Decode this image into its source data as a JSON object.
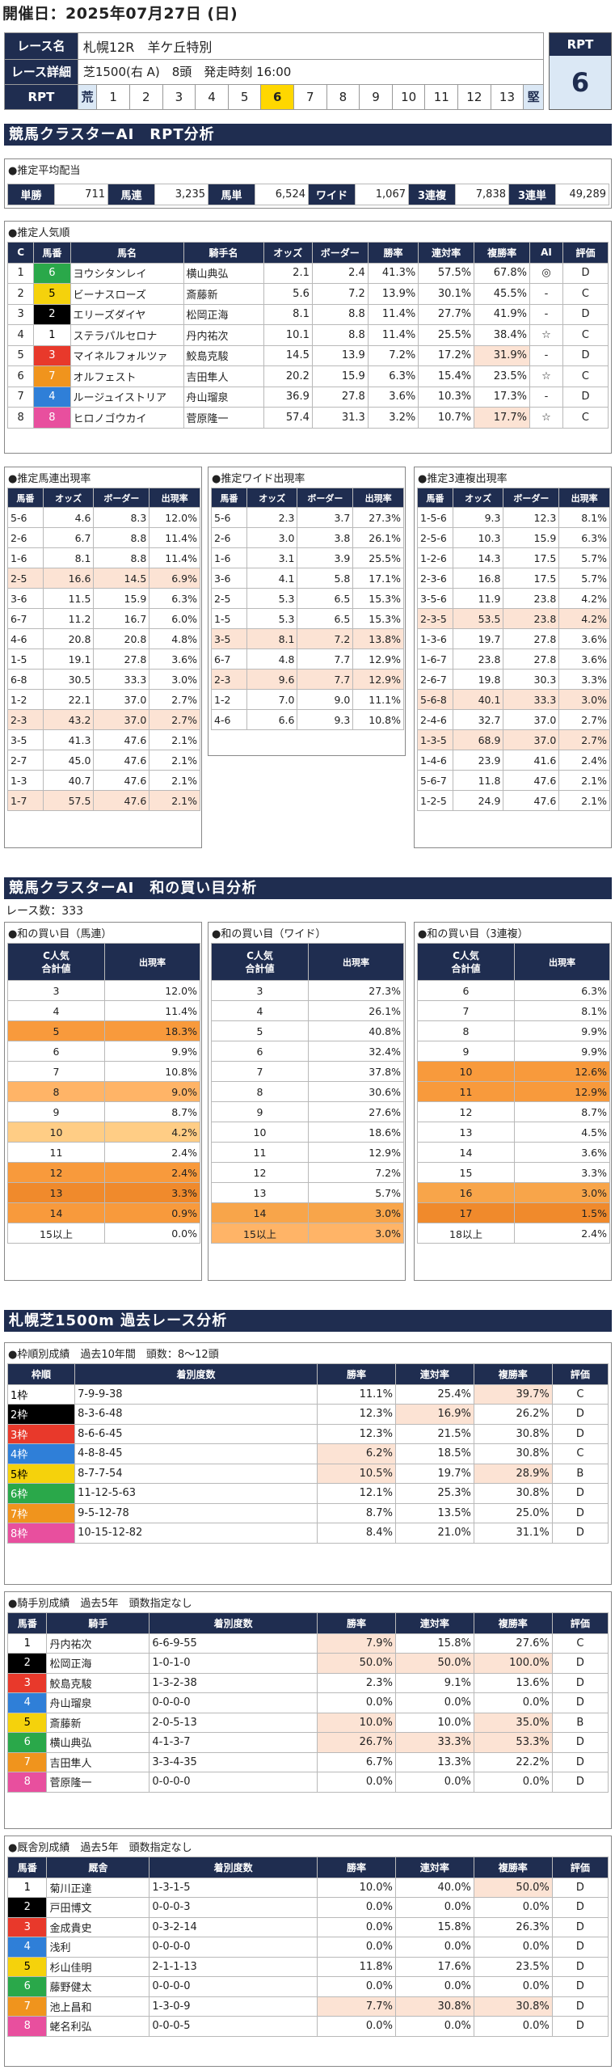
{
  "header": {
    "date": "開催日：2025年07月27日 (日)",
    "race_name_label": "レース名",
    "race_name": "札幌12R　羊ケ丘特別",
    "race_detail_label": "レース詳細",
    "race_detail": "芝1500(右 A)　8頭　発走時刻 16:00",
    "rpt_label": "RPT",
    "rpt_left": "荒",
    "rpt_right": "堅",
    "rpt_scale": [
      "1",
      "2",
      "3",
      "4",
      "5",
      "6",
      "7",
      "8",
      "9",
      "10",
      "11",
      "12",
      "13"
    ],
    "rpt_selected": "6",
    "rpt_box_label": "RPT",
    "rpt_value": "6"
  },
  "s1": {
    "title": "競馬クラスターAI　RPT分析",
    "payout_heading": "●推定平均配当",
    "payouts": [
      {
        "k": "単勝",
        "v": "711"
      },
      {
        "k": "馬連",
        "v": "3,235"
      },
      {
        "k": "馬単",
        "v": "6,524"
      },
      {
        "k": "ワイド",
        "v": "1,067"
      },
      {
        "k": "3連複",
        "v": "7,838"
      },
      {
        "k": "3連単",
        "v": "49,289"
      }
    ],
    "pop_heading": "●推定人気順",
    "pop_cols": [
      "C",
      "馬番",
      "馬名",
      "騎手名",
      "オッズ",
      "ボーダー",
      "勝率",
      "連対率",
      "複勝率",
      "AI",
      "評価"
    ],
    "pop_rows": [
      [
        "1",
        "6",
        "ヨウシタンレイ",
        "横山典弘",
        "2.1",
        "2.4",
        "41.3%",
        "57.5%",
        "67.8%",
        "◎",
        "D"
      ],
      [
        "2",
        "5",
        "ビーナスローズ",
        "斎藤新",
        "5.6",
        "7.2",
        "13.9%",
        "30.1%",
        "45.5%",
        "-",
        "C"
      ],
      [
        "3",
        "2",
        "エリーズダイヤ",
        "松岡正海",
        "8.1",
        "8.8",
        "11.4%",
        "27.7%",
        "41.9%",
        "-",
        "D"
      ],
      [
        "4",
        "1",
        "ステラパルセロナ",
        "丹内祐次",
        "10.1",
        "8.8",
        "11.4%",
        "25.5%",
        "38.4%",
        "☆",
        "C"
      ],
      [
        "5",
        "3",
        "マイネルフォルツァ",
        "鮫島克駿",
        "14.5",
        "13.9",
        "7.2%",
        "17.2%",
        "31.9%",
        "-",
        "D"
      ],
      [
        "6",
        "7",
        "オルフェスト",
        "吉田隼人",
        "20.2",
        "15.9",
        "6.3%",
        "15.4%",
        "23.5%",
        "☆",
        "C"
      ],
      [
        "7",
        "4",
        "ルージュイストリア",
        "舟山瑠泉",
        "36.9",
        "27.8",
        "3.6%",
        "10.3%",
        "17.3%",
        "-",
        "D"
      ],
      [
        "8",
        "8",
        "ヒロノゴウカイ",
        "菅原隆一",
        "57.4",
        "31.3",
        "3.2%",
        "10.7%",
        "17.7%",
        "☆",
        "C"
      ]
    ],
    "umaren_heading": "●推定馬連出現率",
    "wide_heading": "●推定ワイド出現率",
    "sanren_heading": "●推定3連複出現率",
    "sub_cols": [
      "馬番",
      "オッズ",
      "ボーダー",
      "出現率"
    ],
    "umaren": [
      [
        "5-6",
        "4.6",
        "8.3",
        "12.0%"
      ],
      [
        "2-6",
        "6.7",
        "8.8",
        "11.4%"
      ],
      [
        "1-6",
        "8.1",
        "8.8",
        "11.4%"
      ],
      [
        "2-5",
        "16.6",
        "14.5",
        "6.9%"
      ],
      [
        "3-6",
        "11.5",
        "15.9",
        "6.3%"
      ],
      [
        "6-7",
        "11.2",
        "16.7",
        "6.0%"
      ],
      [
        "4-6",
        "20.8",
        "20.8",
        "4.8%"
      ],
      [
        "1-5",
        "19.1",
        "27.8",
        "3.6%"
      ],
      [
        "6-8",
        "30.5",
        "33.3",
        "3.0%"
      ],
      [
        "1-2",
        "22.1",
        "37.0",
        "2.7%"
      ],
      [
        "2-3",
        "43.2",
        "37.0",
        "2.7%"
      ],
      [
        "3-5",
        "41.3",
        "47.6",
        "2.1%"
      ],
      [
        "2-7",
        "45.0",
        "47.6",
        "2.1%"
      ],
      [
        "1-3",
        "40.7",
        "47.6",
        "2.1%"
      ],
      [
        "1-7",
        "57.5",
        "47.6",
        "2.1%"
      ]
    ],
    "wide": [
      [
        "5-6",
        "2.3",
        "3.7",
        "27.3%"
      ],
      [
        "2-6",
        "3.0",
        "3.8",
        "26.1%"
      ],
      [
        "1-6",
        "3.1",
        "3.9",
        "25.5%"
      ],
      [
        "3-6",
        "4.1",
        "5.8",
        "17.1%"
      ],
      [
        "2-5",
        "5.3",
        "6.5",
        "15.3%"
      ],
      [
        "1-5",
        "5.3",
        "6.5",
        "15.3%"
      ],
      [
        "3-5",
        "8.1",
        "7.2",
        "13.8%"
      ],
      [
        "6-7",
        "4.8",
        "7.7",
        "12.9%"
      ],
      [
        "2-3",
        "9.6",
        "7.7",
        "12.9%"
      ],
      [
        "1-2",
        "7.0",
        "9.0",
        "11.1%"
      ],
      [
        "4-6",
        "6.6",
        "9.3",
        "10.8%"
      ]
    ],
    "sanren": [
      [
        "1-5-6",
        "9.3",
        "12.3",
        "8.1%"
      ],
      [
        "2-5-6",
        "10.3",
        "15.9",
        "6.3%"
      ],
      [
        "1-2-6",
        "14.3",
        "17.5",
        "5.7%"
      ],
      [
        "2-3-6",
        "16.8",
        "17.5",
        "5.7%"
      ],
      [
        "3-5-6",
        "11.9",
        "23.8",
        "4.2%"
      ],
      [
        "2-3-5",
        "53.5",
        "23.8",
        "4.2%"
      ],
      [
        "1-3-6",
        "19.7",
        "27.8",
        "3.6%"
      ],
      [
        "1-6-7",
        "23.8",
        "27.8",
        "3.6%"
      ],
      [
        "2-6-7",
        "19.8",
        "30.3",
        "3.3%"
      ],
      [
        "5-6-8",
        "40.1",
        "33.3",
        "3.0%"
      ],
      [
        "2-4-6",
        "32.7",
        "37.0",
        "2.7%"
      ],
      [
        "1-3-5",
        "68.9",
        "37.0",
        "2.7%"
      ],
      [
        "1-4-6",
        "23.9",
        "41.6",
        "2.4%"
      ],
      [
        "5-6-7",
        "11.8",
        "47.6",
        "2.1%"
      ],
      [
        "1-2-5",
        "24.9",
        "47.6",
        "2.1%"
      ]
    ]
  },
  "s2": {
    "title": "競馬クラスターAI　和の買い目分析",
    "race_count": "レース数：333",
    "h_umaren": "●和の買い目（馬連）",
    "h_wide": "●和の買い目（ワイド）",
    "h_sanren": "●和の買い目（3連複）",
    "col1": "C人気\n合計値",
    "col1a": "C人気",
    "col1b": "合計値",
    "col2": "出現率",
    "umaren": [
      [
        "3",
        "12.0%"
      ],
      [
        "4",
        "11.4%"
      ],
      [
        "5",
        "18.3%"
      ],
      [
        "6",
        "9.9%"
      ],
      [
        "7",
        "10.8%"
      ],
      [
        "8",
        "9.0%"
      ],
      [
        "9",
        "8.7%"
      ],
      [
        "10",
        "4.2%"
      ],
      [
        "11",
        "2.4%"
      ],
      [
        "12",
        "2.4%"
      ],
      [
        "13",
        "3.3%"
      ],
      [
        "14",
        "0.9%"
      ],
      [
        "15以上",
        "0.0%"
      ]
    ],
    "wide": [
      [
        "3",
        "27.3%"
      ],
      [
        "4",
        "26.1%"
      ],
      [
        "5",
        "40.8%"
      ],
      [
        "6",
        "32.4%"
      ],
      [
        "7",
        "37.8%"
      ],
      [
        "8",
        "30.6%"
      ],
      [
        "9",
        "27.6%"
      ],
      [
        "10",
        "18.6%"
      ],
      [
        "11",
        "12.9%"
      ],
      [
        "12",
        "7.2%"
      ],
      [
        "13",
        "5.7%"
      ],
      [
        "14",
        "3.0%"
      ],
      [
        "15以上",
        "3.0%"
      ]
    ],
    "sanren": [
      [
        "6",
        "6.3%"
      ],
      [
        "7",
        "8.1%"
      ],
      [
        "8",
        "9.9%"
      ],
      [
        "9",
        "9.9%"
      ],
      [
        "10",
        "12.6%"
      ],
      [
        "11",
        "12.9%"
      ],
      [
        "12",
        "8.7%"
      ],
      [
        "13",
        "4.5%"
      ],
      [
        "14",
        "3.6%"
      ],
      [
        "15",
        "3.3%"
      ],
      [
        "16",
        "3.0%"
      ],
      [
        "17",
        "1.5%"
      ],
      [
        "18以上",
        "2.4%"
      ]
    ]
  },
  "s3": {
    "title": "札幌芝1500m 過去レース分析",
    "waku_heading": "●枠順別成績　過去10年間　頭数：8～12頭",
    "waku_cols": [
      "枠順",
      "着別度数",
      "勝率",
      "連対率",
      "複勝率",
      "評価"
    ],
    "waku": [
      [
        "1枠",
        "7-9-9-38",
        "11.1%",
        "25.4%",
        "39.7%",
        "C"
      ],
      [
        "2枠",
        "8-3-6-48",
        "12.3%",
        "16.9%",
        "26.2%",
        "D"
      ],
      [
        "3枠",
        "8-6-6-45",
        "12.3%",
        "21.5%",
        "30.8%",
        "D"
      ],
      [
        "4枠",
        "4-8-8-45",
        "6.2%",
        "18.5%",
        "30.8%",
        "C"
      ],
      [
        "5枠",
        "8-7-7-54",
        "10.5%",
        "19.7%",
        "28.9%",
        "B"
      ],
      [
        "6枠",
        "11-12-5-63",
        "12.1%",
        "25.3%",
        "30.8%",
        "D"
      ],
      [
        "7枠",
        "9-5-12-78",
        "8.7%",
        "13.5%",
        "25.0%",
        "D"
      ],
      [
        "8枠",
        "10-15-12-82",
        "8.4%",
        "21.0%",
        "31.1%",
        "D"
      ]
    ],
    "jockey_heading": "●騎手別成績　過去5年　頭数指定なし",
    "jockey_cols": [
      "馬番",
      "騎手",
      "着別度数",
      "勝率",
      "連対率",
      "複勝率",
      "評価"
    ],
    "jockey": [
      [
        "1",
        "丹内祐次",
        "6-6-9-55",
        "7.9%",
        "15.8%",
        "27.6%",
        "C"
      ],
      [
        "2",
        "松岡正海",
        "1-0-1-0",
        "50.0%",
        "50.0%",
        "100.0%",
        "D"
      ],
      [
        "3",
        "鮫島克駿",
        "1-3-2-38",
        "2.3%",
        "9.1%",
        "13.6%",
        "D"
      ],
      [
        "4",
        "舟山瑠泉",
        "0-0-0-0",
        "0.0%",
        "0.0%",
        "0.0%",
        "D"
      ],
      [
        "5",
        "斎藤新",
        "2-0-5-13",
        "10.0%",
        "10.0%",
        "35.0%",
        "B"
      ],
      [
        "6",
        "横山典弘",
        "4-1-3-7",
        "26.7%",
        "33.3%",
        "53.3%",
        "D"
      ],
      [
        "7",
        "吉田隼人",
        "3-3-4-35",
        "6.7%",
        "13.3%",
        "22.2%",
        "D"
      ],
      [
        "8",
        "菅原隆一",
        "0-0-0-0",
        "0.0%",
        "0.0%",
        "0.0%",
        "D"
      ]
    ],
    "trainer_heading": "●厩舎別成績　過去5年　頭数指定なし",
    "trainer_cols": [
      "馬番",
      "厩舎",
      "着別度数",
      "勝率",
      "連対率",
      "複勝率",
      "評価"
    ],
    "trainer": [
      [
        "1",
        "菊川正達",
        "1-3-1-5",
        "10.0%",
        "40.0%",
        "50.0%",
        "D"
      ],
      [
        "2",
        "戸田博文",
        "0-0-0-3",
        "0.0%",
        "0.0%",
        "0.0%",
        "D"
      ],
      [
        "3",
        "金成貴史",
        "0-3-2-14",
        "0.0%",
        "15.8%",
        "26.3%",
        "D"
      ],
      [
        "4",
        "浅利",
        "0-0-0-0",
        "0.0%",
        "0.0%",
        "0.0%",
        "D"
      ],
      [
        "5",
        "杉山佳明",
        "2-1-1-13",
        "11.8%",
        "17.6%",
        "23.5%",
        "D"
      ],
      [
        "6",
        "藤野健太",
        "0-0-0-0",
        "0.0%",
        "0.0%",
        "0.0%",
        "D"
      ],
      [
        "7",
        "池上昌和",
        "1-3-0-9",
        "7.7%",
        "30.8%",
        "30.8%",
        "D"
      ],
      [
        "8",
        "蛯名利弘",
        "0-0-0-5",
        "0.0%",
        "0.0%",
        "0.0%",
        "D"
      ]
    ]
  },
  "colors": {
    "navy": "#1f2d50",
    "waku": [
      "#ffffff",
      "#000000",
      "#e8392b",
      "#2f7fd8",
      "#f5d20c",
      "#2aa84a",
      "#f0941d",
      "#e84f9e"
    ],
    "highlight_pink": "#fce3d4",
    "highlight_orange": "#f7a35c",
    "rpt_selected": "#ffd700"
  }
}
